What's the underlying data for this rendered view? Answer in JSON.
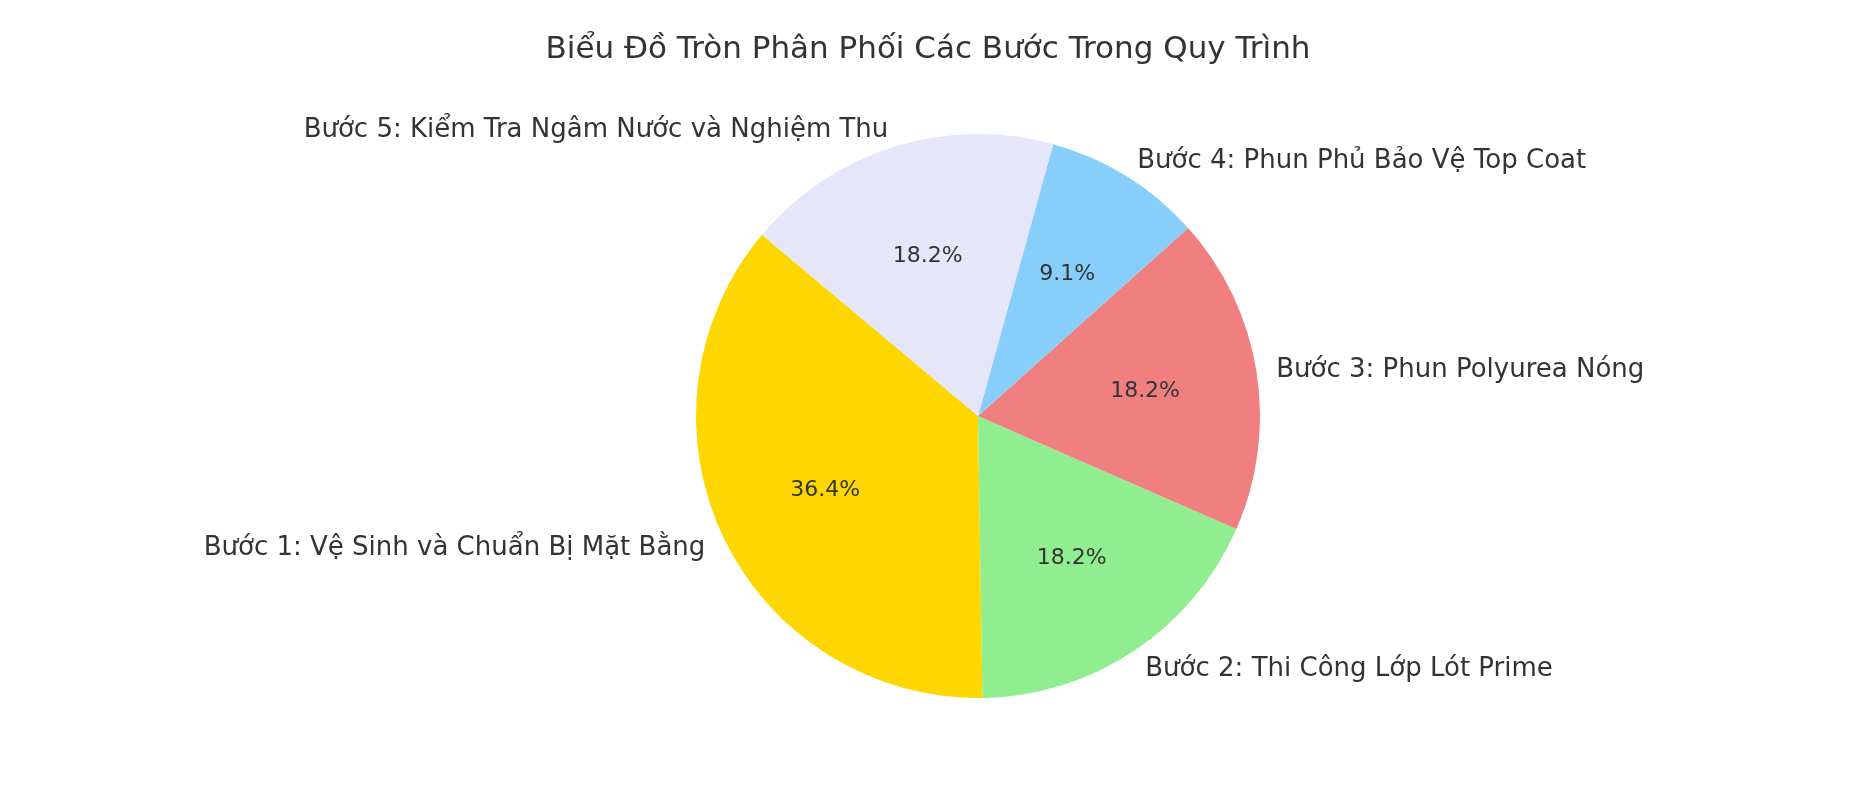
{
  "chart_data": {
    "type": "pie",
    "title": "Biểu Đồ Tròn Phân Phối Các Bước Trong Quy Trình",
    "categories": [
      "Bước 1: Vệ Sinh và Chuẩn Bị Mặt Bằng",
      "Bước 2: Thi Công Lớp Lót Prime",
      "Bước 3: Phun Polyurea Nóng",
      "Bước 4: Phun Phủ Bảo Vệ Top Coat",
      "Bước 5: Kiểm Tra Ngâm Nước và Nghiệm Thu"
    ],
    "values": [
      36.4,
      18.2,
      18.2,
      9.1,
      18.2
    ],
    "colors": [
      "#ffd700",
      "#90ee90",
      "#f08080",
      "#87cefa",
      "#e6e6fa"
    ],
    "value_labels": [
      "36.4%",
      "18.2%",
      "18.2%",
      "9.1%",
      "18.2%"
    ],
    "legend": false
  }
}
